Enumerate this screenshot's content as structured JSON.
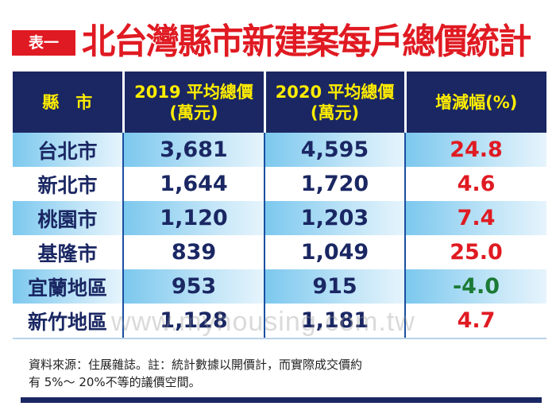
{
  "badge": "表一",
  "title": "北台灣縣市新建案每戶總價統計",
  "table": {
    "headers": [
      {
        "line1": "縣　市",
        "line2": ""
      },
      {
        "line1": "2019 平均總價",
        "line2": "(萬元)"
      },
      {
        "line1": "2020 平均總價",
        "line2": "(萬元)"
      },
      {
        "line1": "增減幅(%)",
        "line2": ""
      }
    ],
    "rows": [
      {
        "city": "台北市",
        "y2019": "3,681",
        "y2020": "4,595",
        "change": "24.8"
      },
      {
        "city": "新北市",
        "y2019": "1,644",
        "y2020": "1,720",
        "change": "4.6"
      },
      {
        "city": "桃園市",
        "y2019": "1,120",
        "y2020": "1,203",
        "change": "7.4"
      },
      {
        "city": "基隆市",
        "y2019": "839",
        "y2020": "1,049",
        "change": "25.0"
      },
      {
        "city": "宜蘭地區",
        "y2019": "953",
        "y2020": "915",
        "change": "-4.0"
      },
      {
        "city": "新竹地區",
        "y2019": "1,128",
        "y2020": "1,181",
        "change": "4.7"
      }
    ]
  },
  "watermark": "www.myhousing.com.tw",
  "note": {
    "line1": "資料來源：住展雜誌。註：統計數據以開價計，而實際成交價約",
    "line2": "有 5%～ 20%不等的議價空間。"
  },
  "colors": {
    "red": "#e01a22",
    "navy": "#1a2763",
    "yellow": "#ffed00",
    "green": "#1b7a35",
    "light_blue": "#7cc8ee"
  }
}
